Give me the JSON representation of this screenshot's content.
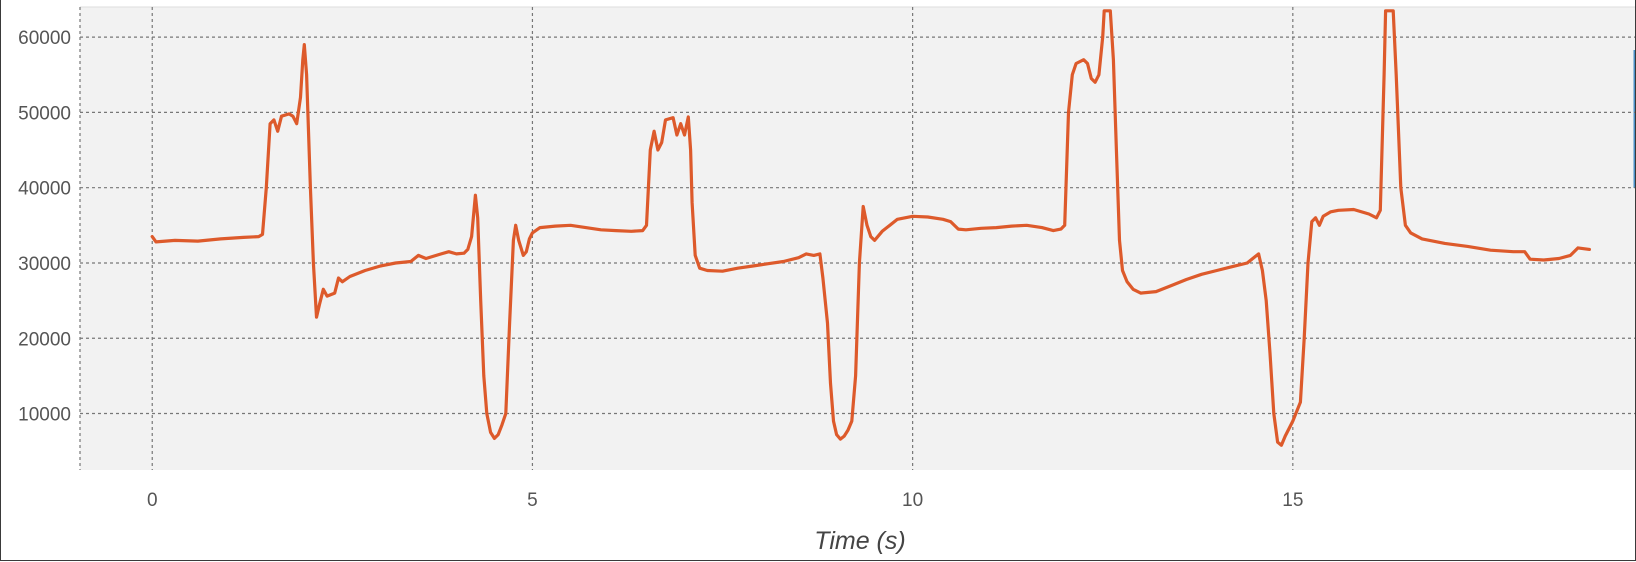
{
  "chart_data": {
    "type": "line",
    "xlabel": "Time (s)",
    "ylabel": "",
    "xlim": [
      -0.95,
      19.5
    ],
    "ylim": [
      2500,
      64000
    ],
    "x_ticks": [
      0,
      5,
      10,
      15
    ],
    "y_ticks": [
      10000,
      20000,
      30000,
      40000,
      50000,
      60000
    ],
    "grid": true,
    "colors": {
      "line": "#dd5a2b",
      "plot_bg": "#f2f2f2",
      "grid": "#777777"
    },
    "series": [
      {
        "points": [
          [
            0.0,
            33500
          ],
          [
            0.05,
            32800
          ],
          [
            0.3,
            33000
          ],
          [
            0.6,
            32900
          ],
          [
            0.9,
            33200
          ],
          [
            1.2,
            33400
          ],
          [
            1.4,
            33500
          ],
          [
            1.45,
            33800
          ],
          [
            1.5,
            40000
          ],
          [
            1.55,
            48500
          ],
          [
            1.6,
            49000
          ],
          [
            1.65,
            47500
          ],
          [
            1.7,
            49500
          ],
          [
            1.8,
            49800
          ],
          [
            1.85,
            49500
          ],
          [
            1.9,
            48500
          ],
          [
            1.95,
            52000
          ],
          [
            1.98,
            57000
          ],
          [
            2.0,
            59000
          ],
          [
            2.03,
            55000
          ],
          [
            2.08,
            40000
          ],
          [
            2.12,
            30000
          ],
          [
            2.16,
            22800
          ],
          [
            2.2,
            24500
          ],
          [
            2.25,
            26500
          ],
          [
            2.3,
            25600
          ],
          [
            2.4,
            26000
          ],
          [
            2.45,
            28000
          ],
          [
            2.5,
            27500
          ],
          [
            2.6,
            28200
          ],
          [
            2.8,
            29000
          ],
          [
            3.0,
            29600
          ],
          [
            3.2,
            30000
          ],
          [
            3.4,
            30200
          ],
          [
            3.5,
            31000
          ],
          [
            3.6,
            30600
          ],
          [
            3.8,
            31200
          ],
          [
            3.9,
            31500
          ],
          [
            4.0,
            31200
          ],
          [
            4.1,
            31300
          ],
          [
            4.15,
            31800
          ],
          [
            4.2,
            33500
          ],
          [
            4.25,
            39000
          ],
          [
            4.28,
            36000
          ],
          [
            4.32,
            25000
          ],
          [
            4.36,
            15000
          ],
          [
            4.4,
            10000
          ],
          [
            4.45,
            7500
          ],
          [
            4.5,
            6700
          ],
          [
            4.55,
            7200
          ],
          [
            4.6,
            8500
          ],
          [
            4.65,
            10000
          ],
          [
            4.7,
            22000
          ],
          [
            4.75,
            33000
          ],
          [
            4.78,
            35000
          ],
          [
            4.82,
            33000
          ],
          [
            4.88,
            31000
          ],
          [
            4.92,
            31500
          ],
          [
            4.96,
            33200
          ],
          [
            5.0,
            34000
          ],
          [
            5.1,
            34700
          ],
          [
            5.3,
            34900
          ],
          [
            5.5,
            35000
          ],
          [
            5.7,
            34700
          ],
          [
            5.9,
            34400
          ],
          [
            6.1,
            34300
          ],
          [
            6.3,
            34200
          ],
          [
            6.45,
            34300
          ],
          [
            6.5,
            35000
          ],
          [
            6.55,
            45000
          ],
          [
            6.6,
            47500
          ],
          [
            6.65,
            45000
          ],
          [
            6.7,
            46000
          ],
          [
            6.75,
            49000
          ],
          [
            6.85,
            49300
          ],
          [
            6.9,
            47000
          ],
          [
            6.95,
            48500
          ],
          [
            7.0,
            47000
          ],
          [
            7.05,
            49400
          ],
          [
            7.08,
            45000
          ],
          [
            7.1,
            38000
          ],
          [
            7.14,
            31000
          ],
          [
            7.2,
            29300
          ],
          [
            7.3,
            29000
          ],
          [
            7.5,
            28900
          ],
          [
            7.7,
            29300
          ],
          [
            7.9,
            29600
          ],
          [
            8.1,
            29900
          ],
          [
            8.3,
            30200
          ],
          [
            8.5,
            30700
          ],
          [
            8.6,
            31200
          ],
          [
            8.7,
            31000
          ],
          [
            8.78,
            31200
          ],
          [
            8.82,
            28000
          ],
          [
            8.88,
            22000
          ],
          [
            8.92,
            14000
          ],
          [
            8.96,
            9000
          ],
          [
            9.0,
            7200
          ],
          [
            9.05,
            6600
          ],
          [
            9.1,
            7000
          ],
          [
            9.15,
            7800
          ],
          [
            9.2,
            9000
          ],
          [
            9.25,
            15000
          ],
          [
            9.3,
            30000
          ],
          [
            9.35,
            37500
          ],
          [
            9.4,
            35000
          ],
          [
            9.45,
            33500
          ],
          [
            9.5,
            33000
          ],
          [
            9.6,
            34200
          ],
          [
            9.8,
            35800
          ],
          [
            10.0,
            36200
          ],
          [
            10.2,
            36100
          ],
          [
            10.4,
            35800
          ],
          [
            10.5,
            35500
          ],
          [
            10.6,
            34500
          ],
          [
            10.7,
            34400
          ],
          [
            10.9,
            34600
          ],
          [
            11.1,
            34700
          ],
          [
            11.3,
            34900
          ],
          [
            11.5,
            35000
          ],
          [
            11.7,
            34700
          ],
          [
            11.85,
            34300
          ],
          [
            11.95,
            34500
          ],
          [
            12.0,
            35000
          ],
          [
            12.05,
            50000
          ],
          [
            12.1,
            55000
          ],
          [
            12.15,
            56500
          ],
          [
            12.25,
            57000
          ],
          [
            12.3,
            56500
          ],
          [
            12.35,
            54500
          ],
          [
            12.4,
            54000
          ],
          [
            12.45,
            55000
          ],
          [
            12.5,
            60000
          ],
          [
            12.52,
            63500
          ],
          [
            12.6,
            63500
          ],
          [
            12.64,
            57000
          ],
          [
            12.68,
            45000
          ],
          [
            12.72,
            33000
          ],
          [
            12.76,
            29000
          ],
          [
            12.82,
            27500
          ],
          [
            12.9,
            26500
          ],
          [
            13.0,
            26000
          ],
          [
            13.2,
            26200
          ],
          [
            13.4,
            27000
          ],
          [
            13.6,
            27800
          ],
          [
            13.8,
            28500
          ],
          [
            14.0,
            29000
          ],
          [
            14.2,
            29500
          ],
          [
            14.4,
            30000
          ],
          [
            14.5,
            30800
          ],
          [
            14.55,
            31200
          ],
          [
            14.6,
            29000
          ],
          [
            14.65,
            25000
          ],
          [
            14.7,
            18000
          ],
          [
            14.75,
            10000
          ],
          [
            14.8,
            6200
          ],
          [
            14.85,
            5800
          ],
          [
            14.9,
            7000
          ],
          [
            15.0,
            9000
          ],
          [
            15.1,
            11500
          ],
          [
            15.15,
            20000
          ],
          [
            15.2,
            30000
          ],
          [
            15.25,
            35500
          ],
          [
            15.3,
            36000
          ],
          [
            15.35,
            35000
          ],
          [
            15.4,
            36200
          ],
          [
            15.5,
            36800
          ],
          [
            15.6,
            37000
          ],
          [
            15.8,
            37100
          ],
          [
            16.0,
            36500
          ],
          [
            16.1,
            36000
          ],
          [
            16.15,
            37000
          ],
          [
            16.2,
            55000
          ],
          [
            16.22,
            63500
          ],
          [
            16.32,
            63500
          ],
          [
            16.36,
            55000
          ],
          [
            16.42,
            40000
          ],
          [
            16.48,
            35000
          ],
          [
            16.55,
            34000
          ],
          [
            16.7,
            33200
          ],
          [
            17.0,
            32600
          ],
          [
            17.3,
            32200
          ],
          [
            17.6,
            31700
          ],
          [
            17.9,
            31500
          ],
          [
            18.05,
            31500
          ],
          [
            18.12,
            30500
          ],
          [
            18.3,
            30400
          ],
          [
            18.5,
            30600
          ],
          [
            18.65,
            31000
          ],
          [
            18.75,
            32000
          ],
          [
            18.9,
            31800
          ]
        ]
      }
    ]
  }
}
